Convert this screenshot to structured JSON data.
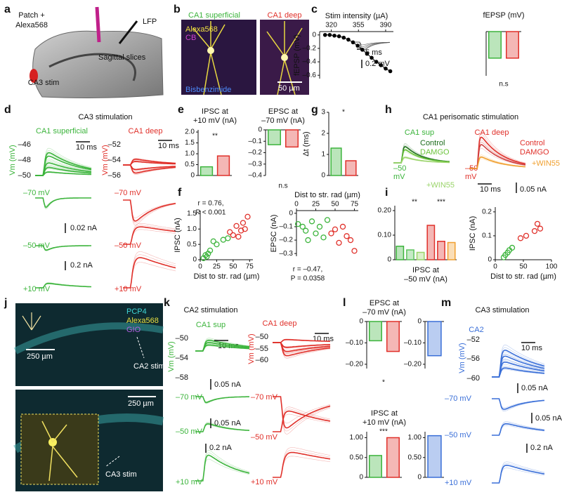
{
  "letters": [
    "a",
    "b",
    "c",
    "d",
    "e",
    "f",
    "g",
    "h",
    "i",
    "j",
    "k",
    "l",
    "m"
  ],
  "texts": [
    "Patch +",
    "Alexa568",
    "LFP",
    "Sagittal slices",
    "CA3 stim",
    "CA1 superficial",
    "CA1 deep",
    "Alexa568",
    "CB",
    "Bisbenzimide",
    "50 µm",
    "5 ms",
    "0.2 mV",
    "CA3 stimulation",
    "CA1 superficial",
    "CA1 deep",
    "Vm (mV)",
    "–46",
    "–48",
    "–50",
    "Vm (mV)",
    "–52",
    "–54",
    "–56",
    "10 ms",
    "10 ms",
    "–70 mV",
    "–70 mV",
    "0.02 nA",
    "–50 mV",
    "–50 mV",
    "0.2 nA",
    "+10 mV",
    "+10 mV",
    "CA1 perisomatic stimulation",
    "CA1 sup",
    "CA1 deep",
    "Control",
    "DAMGO",
    "–50",
    "mV",
    "+WIN55",
    "Control",
    "DAMGO",
    "+WIN55",
    "–50",
    "mV",
    "10 ms",
    "0.05 nA",
    "PCP4",
    "Alexa568",
    "GIO",
    "250 µm",
    "CA2 stim",
    "250 µm",
    "CA3 stim",
    "CA2 stimulation",
    "CA1 sup",
    "CA1 deep",
    "Vm (mV)",
    "–50",
    "–54",
    "–58",
    "Vm (mV)",
    "–50",
    "–55",
    "–60",
    "10 ms",
    "10 ms",
    "0.05 nA",
    "–70 mV",
    "–70 mV",
    "0.05 nA",
    "–50 mV",
    "–50 mV",
    "0.2 nA",
    "+10 mV",
    "+10 mV",
    "CA3 stimulation",
    "CA2",
    "Vm (mV)",
    "–52",
    "–56",
    "–60",
    "10 ms",
    "0.05 nA",
    "–70 mV",
    "0.05 nA",
    "–50 mV",
    "0.2 nA",
    "+10 mV"
  ],
  "chart_data": [
    {
      "type": "line",
      "xlabel": "Stim intensity (µA)",
      "ylabel": "fEPSP (mV)",
      "xtick_side": "top",
      "color": "#000000",
      "x": [
        312,
        318,
        324,
        330,
        336,
        342,
        348,
        354,
        360,
        366,
        372,
        378,
        384,
        390,
        396
      ],
      "values": [
        0,
        0,
        -0.01,
        -0.02,
        -0.04,
        -0.07,
        -0.11,
        -0.16,
        -0.22,
        -0.28,
        -0.34,
        -0.4,
        -0.45,
        -0.5,
        -0.54
      ],
      "xlim": [
        305,
        400
      ],
      "xticks": [
        320,
        355,
        390
      ],
      "ylim": [
        -0.65,
        0.05
      ],
      "yticks": [
        0,
        {
          "value": -0.2,
          "label": "–0.2"
        },
        {
          "value": -0.4,
          "label": "–0.4"
        },
        {
          "value": -0.6,
          "label": "–0.6"
        }
      ]
    },
    {
      "type": "bar",
      "title": [
        "fEPSP (mV)"
      ],
      "categories": [
        null,
        null
      ],
      "values": [
        -0.12,
        -0.12
      ],
      "colors": [
        "#3cb43c",
        "#e0302a"
      ],
      "ylim": [
        -0.2,
        0
      ],
      "annotations": [
        "n.s"
      ]
    },
    {
      "type": "bar",
      "title": [
        "IPSC at",
        "+10 mV (nA)"
      ],
      "categories": [
        null,
        null
      ],
      "values": [
        0.4,
        0.9
      ],
      "colors": [
        "#3cb43c",
        "#e0302a"
      ],
      "ylim": [
        0,
        2.1
      ],
      "yticks": [
        0,
        0.5,
        {
          "value": 1,
          "label": "1.0"
        },
        1.5,
        {
          "value": 2,
          "label": "2.0"
        }
      ],
      "annotations": [
        "**"
      ]
    },
    {
      "type": "bar",
      "title": [
        "EPSC at",
        "–70 mV (nA)"
      ],
      "categories": [
        null,
        null
      ],
      "values": [
        -0.13,
        -0.15
      ],
      "colors": [
        "#3cb43c",
        "#e0302a"
      ],
      "ylim": [
        -0.4,
        0
      ],
      "yticks": [
        0,
        {
          "value": -0.1,
          "label": "–0.1"
        },
        {
          "value": -0.2,
          "label": "–0.2"
        },
        {
          "value": -0.3,
          "label": "–0.3"
        },
        {
          "value": -0.4,
          "label": "–0.4"
        }
      ],
      "annotations": [
        "n.s"
      ]
    },
    {
      "type": "bar",
      "ylabel": "Δt (ms)",
      "categories": [
        null,
        null
      ],
      "values": [
        1.3,
        0.7
      ],
      "colors": [
        "#3cb43c",
        "#e0302a"
      ],
      "ylim": [
        0,
        3
      ],
      "yticks": [
        0,
        1,
        2,
        3
      ],
      "annotations": [
        "*"
      ]
    },
    {
      "type": "scatter",
      "xlabel": "Dist to str. rad (µm)",
      "ylabel": "IPSC (nA)",
      "xlim": [
        0,
        80
      ],
      "xticks": [
        0,
        25,
        50,
        75
      ],
      "ylim": [
        0,
        1.6
      ],
      "yticks": [
        0,
        0.5,
        {
          "value": 1,
          "label": "1.0"
        },
        1.5
      ],
      "annotations": [
        "r = 0.76,",
        "P < 0.001"
      ],
      "series": [
        {
          "color": "#3cb43c",
          "x": [
            5,
            8,
            10,
            12,
            15,
            20,
            25,
            35,
            42
          ],
          "values": [
            0.05,
            0.15,
            0.1,
            0.2,
            0.3,
            0.6,
            0.5,
            0.65,
            0.7
          ]
        },
        {
          "color": "#e0302a",
          "x": [
            45,
            50,
            55,
            58,
            62,
            65,
            68,
            72
          ],
          "values": [
            0.9,
            0.8,
            1.1,
            0.75,
            0.95,
            1.2,
            1.0,
            1.4
          ]
        }
      ]
    },
    {
      "type": "scatter",
      "xlabel": "Dist to str. rad (µm)",
      "ylabel": "EPSC (nA)",
      "xtick_side": "top",
      "xlim": [
        0,
        80
      ],
      "xticks": [
        0,
        25,
        50,
        75
      ],
      "ylim": [
        -0.32,
        0.02
      ],
      "yticks": [
        0,
        {
          "value": -0.1,
          "label": "–0.1"
        },
        {
          "value": -0.2,
          "label": "–0.2"
        },
        {
          "value": -0.3,
          "label": "–0.3"
        }
      ],
      "annotations": [
        "r = –0.47,",
        "P = 0.0358"
      ],
      "series": [
        {
          "color": "#3cb43c",
          "x": [
            2,
            8,
            12,
            15,
            20,
            25,
            30,
            35,
            40
          ],
          "values": [
            -0.08,
            -0.1,
            -0.13,
            -0.2,
            -0.06,
            -0.15,
            -0.1,
            -0.18,
            -0.05
          ]
        },
        {
          "color": "#e0302a",
          "x": [
            45,
            50,
            55,
            60,
            65,
            70,
            75
          ],
          "values": [
            -0.15,
            -0.12,
            -0.22,
            -0.1,
            -0.17,
            -0.2,
            -0.28
          ]
        }
      ]
    },
    {
      "type": "bar",
      "xlabel": [
        "IPSC at",
        "–50 mV (nA)"
      ],
      "categories": [
        null,
        null,
        null,
        null,
        null,
        null
      ],
      "values": [
        0.055,
        0.04,
        0.03,
        0.14,
        0.075,
        0.07
      ],
      "colors": [
        "#3cb43c",
        "#5cc45c",
        "#9ad46a",
        "#e0302a",
        "#e0302a",
        "#f0a030"
      ],
      "ylim": [
        0,
        0.22
      ],
      "yticks": [
        0,
        {
          "value": 0.1,
          "label": "0.10"
        },
        {
          "value": 0.2,
          "label": "0.20"
        }
      ],
      "annotations": [
        "**",
        "***"
      ]
    },
    {
      "type": "scatter",
      "xlabel": "Dist to str. rad (µm)",
      "ylabel": "IPSC (nA)",
      "xlim": [
        0,
        100
      ],
      "xticks": [
        0,
        50,
        100
      ],
      "ylim": [
        0,
        0.22
      ],
      "yticks": [
        0,
        0.1,
        0.2
      ],
      "series": [
        {
          "color": "#3cb43c",
          "x": [
            15,
            18,
            22,
            25,
            30
          ],
          "values": [
            0.01,
            0.02,
            0.03,
            0.04,
            0.05
          ]
        },
        {
          "color": "#e0302a",
          "x": [
            45,
            55,
            70,
            75,
            80
          ],
          "values": [
            0.09,
            0.1,
            0.12,
            0.15,
            0.13
          ]
        }
      ]
    },
    {
      "type": "bar",
      "title": [
        "EPSC at",
        "–70 mV (nA)"
      ],
      "categories": [
        null,
        null
      ],
      "values": [
        -0.09,
        -0.14
      ],
      "colors": [
        "#3cb43c",
        "#e0302a"
      ],
      "ylim": [
        -0.22,
        0
      ],
      "yticks": [
        0,
        {
          "value": -0.1,
          "label": "–0.10"
        },
        {
          "value": -0.2,
          "label": "–0.20"
        }
      ],
      "annotations": [
        "*"
      ]
    },
    {
      "type": "bar",
      "categories": [
        null
      ],
      "values": [
        -0.16
      ],
      "colors": [
        "#3a6fd8"
      ],
      "ylim": [
        -0.22,
        0
      ],
      "yticks": [
        0,
        {
          "value": -0.1,
          "label": "–0.10"
        },
        {
          "value": -0.2,
          "label": "–0.20"
        }
      ]
    },
    {
      "type": "bar",
      "title": [
        "IPSC at",
        "+10 mV (nA)"
      ],
      "categories": [
        null,
        null
      ],
      "values": [
        0.55,
        1.0
      ],
      "colors": [
        "#3cb43c",
        "#e0302a"
      ],
      "ylim": [
        0,
        1.15
      ],
      "yticks": [
        0,
        {
          "value": 0.5,
          "label": "0.50"
        },
        {
          "value": 1,
          "label": "1.00"
        }
      ],
      "annotations": [
        "***"
      ]
    },
    {
      "type": "bar",
      "categories": [
        null
      ],
      "values": [
        1.05
      ],
      "colors": [
        "#3a6fd8"
      ],
      "ylim": [
        0,
        1.15
      ],
      "yticks": [
        0,
        {
          "value": 0.5,
          "label": "0.50"
        },
        {
          "value": 1,
          "label": "1.00"
        }
      ]
    }
  ]
}
